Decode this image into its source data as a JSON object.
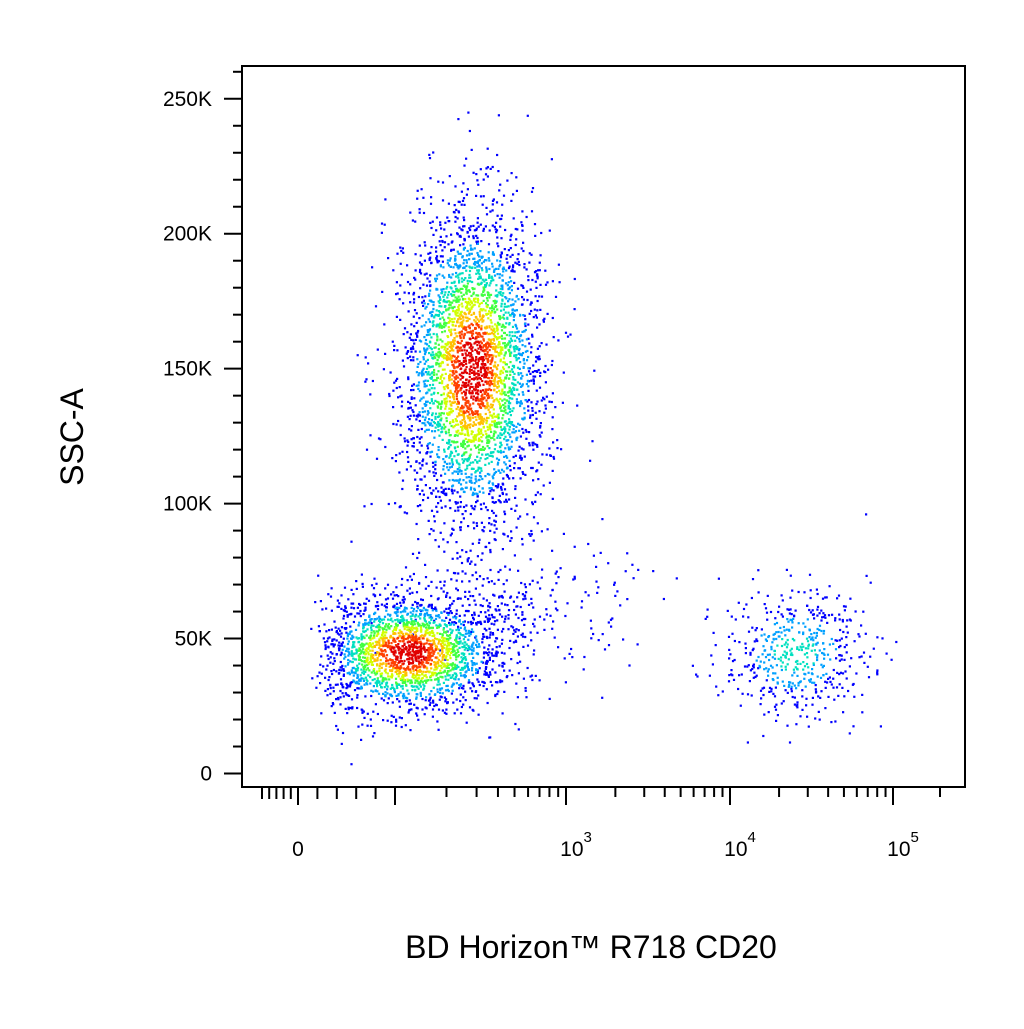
{
  "chart_data": {
    "type": "scatter",
    "style": "density-dot-plot",
    "title": "",
    "xlabel": "BD Horizon™ R718  CD20",
    "ylabel": "SSC-A",
    "x_scale": "biexponential",
    "xlim": [
      -100,
      200000
    ],
    "ylim": [
      -5000,
      262144
    ],
    "x_ticks": [
      {
        "value": 0,
        "base": "0",
        "exp": ""
      },
      {
        "value": 1000,
        "base": "10",
        "exp": "3"
      },
      {
        "value": 10000,
        "base": "10",
        "exp": "4"
      },
      {
        "value": 100000,
        "base": "10",
        "exp": "5"
      }
    ],
    "y_ticks": [
      {
        "value": 0,
        "label": "0"
      },
      {
        "value": 50000,
        "label": "50K"
      },
      {
        "value": 100000,
        "label": "100K"
      },
      {
        "value": 150000,
        "label": "150K"
      },
      {
        "value": 200000,
        "label": "200K"
      },
      {
        "value": 250000,
        "label": "250K"
      }
    ],
    "density_colors": [
      "#0000ff",
      "#00a0ff",
      "#00e0c0",
      "#40ff40",
      "#d0ff00",
      "#ffc000",
      "#ff4000",
      "#e00000"
    ],
    "populations": [
      {
        "x_center": 120,
        "y_center": 45000,
        "x_spread": 0.55,
        "y_spread": 11000,
        "rotation": -0.3,
        "n": 2200
      },
      {
        "x_center": 280,
        "y_center": 150000,
        "x_spread": 0.45,
        "y_spread": 32000,
        "rotation": -0.55,
        "n": 3400
      },
      {
        "x_center": 500,
        "y_center": 62000,
        "x_spread": 0.7,
        "y_spread": 12000,
        "rotation": 0,
        "n": 260
      },
      {
        "x_center": 25000,
        "y_center": 45000,
        "x_spread": 0.45,
        "y_spread": 12000,
        "rotation": 0,
        "n": 520
      }
    ],
    "grid": false,
    "legend": "none"
  }
}
